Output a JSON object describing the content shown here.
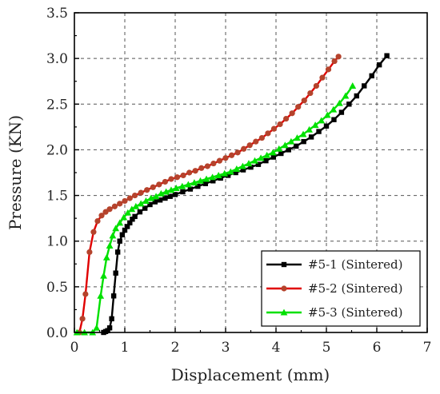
{
  "chart_data": {
    "type": "line",
    "xlabel": "Displacement (mm)",
    "ylabel": "Pressure (KN)",
    "xlim": [
      0,
      7
    ],
    "ylim": [
      0,
      3.5
    ],
    "xticks": [
      "0",
      "1",
      "2",
      "3",
      "4",
      "5",
      "6",
      "7"
    ],
    "yticks": [
      "0.0",
      "0.5",
      "1.0",
      "1.5",
      "2.0",
      "2.5",
      "3.0",
      "3.5"
    ],
    "grid": true,
    "legend_position": "bottom-right",
    "series": [
      {
        "name": "#5-1 (Sintered)",
        "color": "#000000",
        "marker": "square",
        "x": [
          0.58,
          0.62,
          0.66,
          0.7,
          0.74,
          0.78,
          0.82,
          0.86,
          0.9,
          0.95,
          1.0,
          1.05,
          1.1,
          1.15,
          1.2,
          1.3,
          1.4,
          1.5,
          1.6,
          1.7,
          1.8,
          1.9,
          2.0,
          2.15,
          2.3,
          2.45,
          2.6,
          2.75,
          2.9,
          3.05,
          3.2,
          3.35,
          3.5,
          3.65,
          3.8,
          3.95,
          4.1,
          4.25,
          4.4,
          4.55,
          4.7,
          4.85,
          5.0,
          5.15,
          5.3,
          5.45,
          5.6,
          5.75,
          5.9,
          6.05,
          6.2
        ],
        "y": [
          0.0,
          0.01,
          0.02,
          0.05,
          0.15,
          0.4,
          0.65,
          0.88,
          1.0,
          1.07,
          1.12,
          1.16,
          1.2,
          1.24,
          1.27,
          1.32,
          1.36,
          1.4,
          1.43,
          1.45,
          1.47,
          1.49,
          1.51,
          1.54,
          1.57,
          1.6,
          1.63,
          1.66,
          1.69,
          1.72,
          1.75,
          1.78,
          1.81,
          1.84,
          1.88,
          1.92,
          1.96,
          2.0,
          2.04,
          2.09,
          2.14,
          2.2,
          2.26,
          2.33,
          2.41,
          2.5,
          2.59,
          2.7,
          2.81,
          2.93,
          3.03
        ]
      },
      {
        "name": "#5-2 (Sintered)",
        "color": "#e00000",
        "marker_color": "#b5432c",
        "marker": "circle",
        "x": [
          0.1,
          0.16,
          0.22,
          0.3,
          0.38,
          0.46,
          0.54,
          0.62,
          0.7,
          0.8,
          0.9,
          1.0,
          1.1,
          1.2,
          1.32,
          1.44,
          1.56,
          1.68,
          1.8,
          1.92,
          2.04,
          2.16,
          2.28,
          2.4,
          2.52,
          2.64,
          2.76,
          2.88,
          3.0,
          3.12,
          3.24,
          3.36,
          3.48,
          3.6,
          3.72,
          3.84,
          3.96,
          4.08,
          4.2,
          4.32,
          4.44,
          4.56,
          4.68,
          4.8,
          4.92,
          5.04,
          5.16,
          5.24
        ],
        "y": [
          0.0,
          0.15,
          0.42,
          0.88,
          1.1,
          1.22,
          1.28,
          1.32,
          1.35,
          1.38,
          1.41,
          1.44,
          1.47,
          1.5,
          1.53,
          1.56,
          1.59,
          1.62,
          1.65,
          1.68,
          1.7,
          1.72,
          1.75,
          1.77,
          1.8,
          1.82,
          1.85,
          1.88,
          1.91,
          1.94,
          1.97,
          2.01,
          2.05,
          2.09,
          2.13,
          2.18,
          2.23,
          2.28,
          2.34,
          2.4,
          2.47,
          2.54,
          2.62,
          2.7,
          2.79,
          2.88,
          2.97,
          3.02
        ]
      },
      {
        "name": "#5-3 (Sintered)",
        "color": "#00e000",
        "marker": "triangle",
        "x": [
          0.05,
          0.2,
          0.36,
          0.44,
          0.52,
          0.58,
          0.64,
          0.7,
          0.76,
          0.82,
          0.9,
          0.98,
          1.06,
          1.14,
          1.22,
          1.32,
          1.42,
          1.52,
          1.62,
          1.72,
          1.82,
          1.92,
          2.02,
          2.14,
          2.26,
          2.38,
          2.5,
          2.62,
          2.74,
          2.86,
          2.98,
          3.1,
          3.22,
          3.34,
          3.46,
          3.58,
          3.7,
          3.82,
          3.94,
          4.06,
          4.18,
          4.3,
          4.42,
          4.54,
          4.66,
          4.78,
          4.9,
          5.02,
          5.14,
          5.26,
          5.38,
          5.52
        ],
        "y": [
          0.0,
          0.0,
          0.0,
          0.05,
          0.4,
          0.62,
          0.82,
          0.95,
          1.06,
          1.14,
          1.2,
          1.26,
          1.31,
          1.35,
          1.38,
          1.41,
          1.44,
          1.47,
          1.49,
          1.52,
          1.54,
          1.56,
          1.58,
          1.6,
          1.62,
          1.64,
          1.66,
          1.68,
          1.7,
          1.72,
          1.74,
          1.76,
          1.79,
          1.82,
          1.85,
          1.88,
          1.91,
          1.94,
          1.97,
          2.01,
          2.05,
          2.09,
          2.13,
          2.17,
          2.22,
          2.27,
          2.32,
          2.38,
          2.44,
          2.51,
          2.59,
          2.7
        ]
      }
    ]
  }
}
